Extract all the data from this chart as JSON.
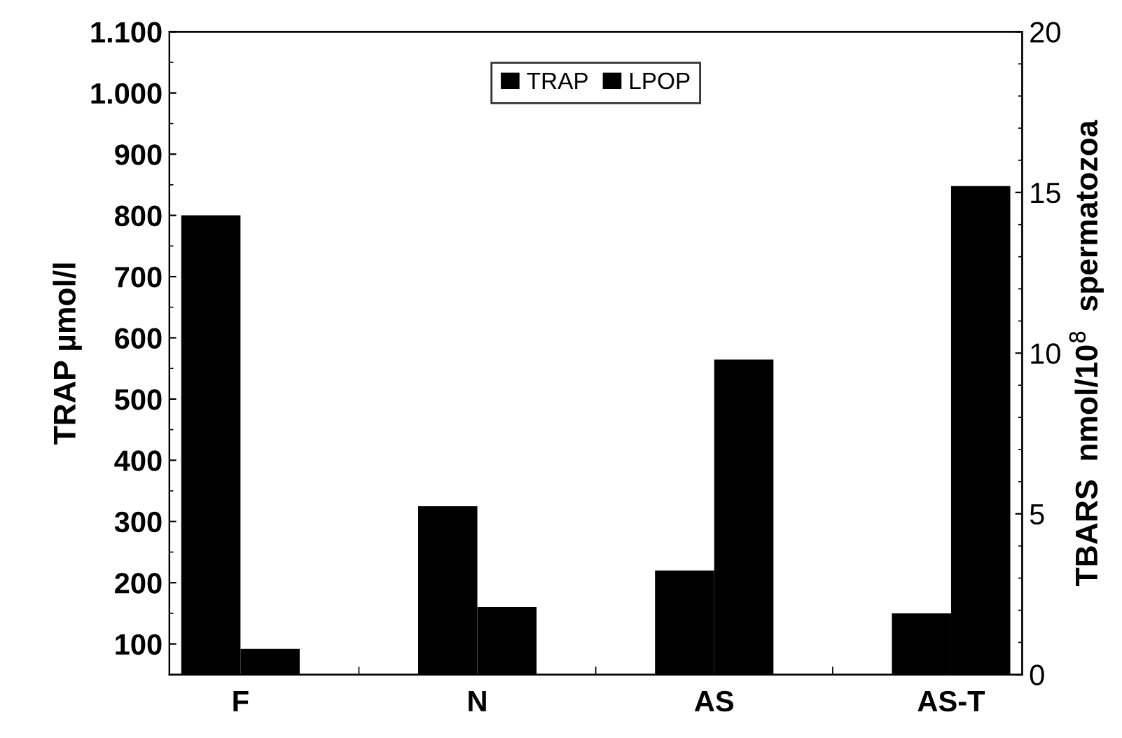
{
  "chart_data": {
    "type": "bar",
    "categories": [
      "F",
      "N",
      "AS",
      "AS-T"
    ],
    "ylabel": "TRAP µmol/l",
    "y2label": "TBARS  nmol/10$^{8}$  spermatozoa",
    "series": [
      {
        "name": "TRAP",
        "color": "#000000",
        "values": [
          800,
          325,
          220,
          150
        ]
      },
      {
        "name": "LPOP",
        "color": "#000000",
        "values": [
          0.8,
          2.1,
          9.8,
          15.2
        ],
        "axis": "y2"
      }
    ],
    "ylim": [
      50,
      1100
    ],
    "yticks": [
      100,
      200,
      300,
      400,
      500,
      600,
      700,
      800,
      900,
      {
        "value": 1000,
        "label": "1.000"
      },
      {
        "value": 1100,
        "label": "1.100"
      }
    ],
    "y2lim": [
      0,
      20
    ],
    "y2ticks": [
      0,
      5,
      10,
      15,
      20
    ],
    "legend": "top",
    "grid": false
  }
}
